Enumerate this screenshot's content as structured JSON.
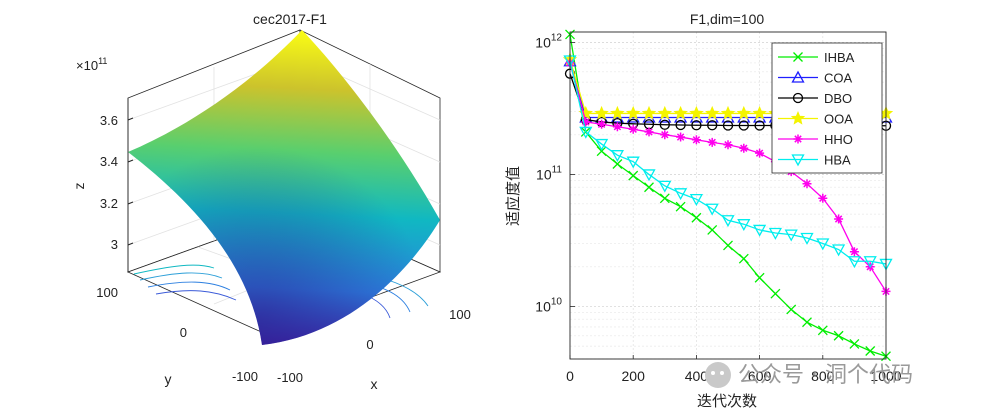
{
  "watermark": "公众号 · 洞个代码",
  "chart_data": [
    {
      "type": "surface",
      "title": "cec2017-F1",
      "xlabel": "x",
      "ylabel": "y",
      "zlabel": "z",
      "zscale_label": "×10",
      "zscale_exp": "11",
      "x_ticks": [
        "-100",
        "0",
        "100"
      ],
      "y_ticks": [
        "-100",
        "0",
        "100"
      ],
      "z_ticks": [
        "3",
        "3.2",
        "3.4",
        "3.6"
      ],
      "colormap": [
        "#3e26a8",
        "#2c7fe0",
        "#10b8c2",
        "#59cf6e",
        "#ccc32c",
        "#f9fb15"
      ]
    },
    {
      "type": "line",
      "title": "F1,dim=100",
      "xlabel": "迭代次数",
      "ylabel": "适应度值",
      "yscale": "log",
      "xlim": [
        0,
        1000
      ],
      "ylim": [
        4000000000,
        1200000000000
      ],
      "x_ticks": [
        "0",
        "200",
        "400",
        "600",
        "800",
        "1000"
      ],
      "y_ticks": [
        {
          "base": "10",
          "exp": "12",
          "value": 1000000000000
        },
        {
          "base": "10",
          "exp": "11",
          "value": 100000000000
        },
        {
          "base": "10",
          "exp": "10",
          "value": 10000000000
        }
      ],
      "grid": true,
      "legend_position": "top-right",
      "x": [
        0,
        50,
        100,
        150,
        200,
        250,
        300,
        350,
        400,
        450,
        500,
        550,
        600,
        650,
        700,
        750,
        800,
        850,
        900,
        950,
        1000
      ],
      "series": [
        {
          "name": "IHBA",
          "color": "#00ee00",
          "marker": "x",
          "values": [
            1150000000000,
            210000000000,
            150000000000,
            120000000000,
            98000000000,
            80000000000,
            66000000000,
            57000000000,
            47000000000,
            38000000000,
            29000000000,
            23000000000,
            16500000000,
            12500000000,
            9500000000,
            7600000000,
            6600000000,
            6000000000,
            5200000000,
            4600000000,
            4200000000
          ]
        },
        {
          "name": "COA",
          "color": "#1f1fff",
          "marker": "triangle",
          "values": [
            720000000000,
            270000000000,
            270000000000,
            270000000000,
            270000000000,
            270000000000,
            270000000000,
            270000000000,
            270000000000,
            270000000000,
            270000000000,
            270000000000,
            270000000000,
            270000000000,
            270000000000,
            270000000000,
            270000000000,
            270000000000,
            270000000000,
            270000000000,
            270000000000
          ]
        },
        {
          "name": "DBO",
          "color": "#000000",
          "marker": "circle",
          "values": [
            580000000000,
            260000000000,
            250000000000,
            245000000000,
            242000000000,
            240000000000,
            238000000000,
            237000000000,
            236000000000,
            236000000000,
            235000000000,
            235000000000,
            235000000000,
            235000000000,
            234000000000,
            234000000000,
            234000000000,
            234000000000,
            234000000000,
            234000000000,
            234000000000
          ]
        },
        {
          "name": "OOA",
          "color": "#f4f400",
          "marker": "star",
          "values": [
            740000000000,
            290000000000,
            290000000000,
            290000000000,
            290000000000,
            290000000000,
            290000000000,
            290000000000,
            290000000000,
            290000000000,
            290000000000,
            290000000000,
            290000000000,
            290000000000,
            290000000000,
            290000000000,
            290000000000,
            290000000000,
            290000000000,
            290000000000,
            290000000000
          ]
        },
        {
          "name": "HHO",
          "color": "#ff00ee",
          "marker": "asterisk",
          "values": [
            700000000000,
            250000000000,
            240000000000,
            230000000000,
            220000000000,
            210000000000,
            200000000000,
            192000000000,
            183000000000,
            175000000000,
            168000000000,
            158000000000,
            145000000000,
            125000000000,
            105000000000,
            85000000000,
            66000000000,
            46000000000,
            26000000000,
            20000000000,
            13000000000
          ]
        },
        {
          "name": "HBA",
          "color": "#00eeee",
          "marker": "triangle-down",
          "values": [
            730000000000,
            210000000000,
            170000000000,
            140000000000,
            125000000000,
            100000000000,
            82000000000,
            72000000000,
            65000000000,
            55000000000,
            45000000000,
            42000000000,
            38000000000,
            36000000000,
            35000000000,
            33000000000,
            30000000000,
            27000000000,
            22000000000,
            22000000000,
            21000000000
          ]
        }
      ]
    }
  ]
}
